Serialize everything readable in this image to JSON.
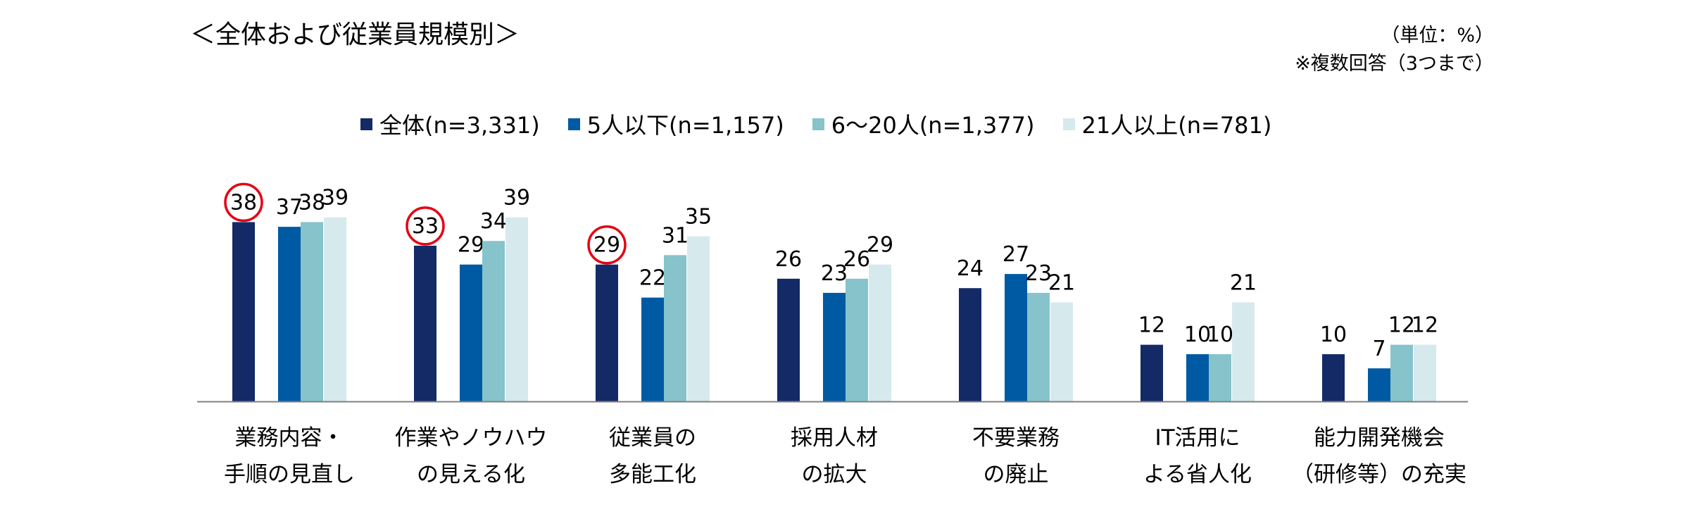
{
  "title": "＜全体および従業員規模別＞",
  "unit_note": "（単位：%）",
  "multi_note": "※複数回答（3つまで）",
  "colors": {
    "series": [
      "#132a67",
      "#005aa3",
      "#86c3cb",
      "#d6eaee"
    ],
    "highlight_circle": "#e60012",
    "axis": "#808080"
  },
  "chart_data": {
    "type": "bar",
    "title": "＜全体および従業員規模別＞",
    "ylabel": "",
    "xlabel": "",
    "ylim": [
      0,
      40
    ],
    "grid": false,
    "legend_position": "top",
    "categories": [
      [
        "業務内容・",
        "手順の見直し"
      ],
      [
        "作業やノウハウ",
        "の見える化"
      ],
      [
        "従業員の",
        "多能工化"
      ],
      [
        "採用人材",
        "の拡大"
      ],
      [
        "不要業務",
        "の廃止"
      ],
      [
        "IT活用に",
        "よる省人化"
      ],
      [
        "能力開発機会",
        "（研修等）の充実"
      ]
    ],
    "series": [
      {
        "name": "全体(n=3,331)",
        "values": [
          38,
          33,
          29,
          26,
          24,
          12,
          10
        ]
      },
      {
        "name": "5人以下(n=1,157)",
        "values": [
          37,
          29,
          22,
          23,
          27,
          10,
          7
        ]
      },
      {
        "name": "6～20人(n=1,377)",
        "values": [
          38,
          34,
          31,
          26,
          23,
          10,
          12
        ]
      },
      {
        "name": "21人以上(n=781)",
        "values": [
          39,
          39,
          35,
          29,
          21,
          21,
          12
        ]
      }
    ],
    "highlighted": [
      {
        "category_index": 0,
        "series_index": 0
      },
      {
        "category_index": 1,
        "series_index": 0
      },
      {
        "category_index": 2,
        "series_index": 0
      }
    ]
  }
}
